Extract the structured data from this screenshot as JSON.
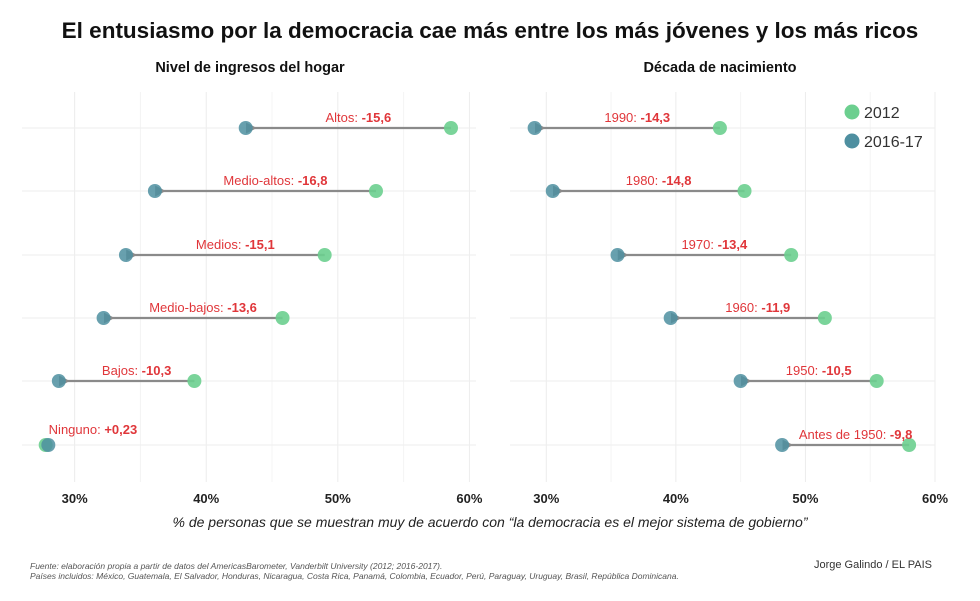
{
  "title": "El entusiasmo por la democracia cae más entre los más jóvenes y los más ricos",
  "caption": "% de personas que se muestran muy de acuerdo con “la democracia es el mejor sistema de gobierno”",
  "source_line1": "Fuente: elaboración propia a partir de datos del AmericasBarometer, Vanderbilt University (2012; 2016-2017).",
  "source_line2": "Países incluidos: México, Guatemala, El Salvador, Honduras, Nicaragua, Costa Rica, Panamá, Colombia, Ecuador, Perú, Paraguay, Uruguay, Brasil, República Dominicana.",
  "credit": "Jorge Galindo / EL PAIS",
  "colors": {
    "2012": "#6ccf8f",
    "2016-17": "#4e8fa0",
    "label": "#e0363a",
    "arrow": "#8a8a8a"
  },
  "chart_data": [
    {
      "type": "dumbbell",
      "title": "Nivel de ingresos del hogar",
      "xlim": [
        26,
        60.5
      ],
      "xticks": [
        30,
        40,
        50,
        60
      ],
      "xtick_labels": [
        "30%",
        "40%",
        "50%",
        "60%"
      ],
      "grid": true,
      "categories": [
        "Altos",
        "Medio-altos",
        "Medios",
        "Medio-bajos",
        "Bajos",
        "Ninguno"
      ],
      "changes": [
        "-15,6",
        "-16,8",
        "-15,1",
        "-13,6",
        "-10,3",
        "+0,23"
      ],
      "series": [
        {
          "name": "2012",
          "values": [
            58.6,
            52.9,
            49.0,
            45.8,
            39.1,
            27.8
          ]
        },
        {
          "name": "2016-17",
          "values": [
            43.0,
            36.1,
            33.9,
            32.2,
            28.8,
            28.0
          ]
        }
      ]
    },
    {
      "type": "dumbbell",
      "title": "Década de nacimiento",
      "xlim": [
        27.2,
        60
      ],
      "xticks": [
        30,
        40,
        50,
        60
      ],
      "xtick_labels": [
        "30%",
        "40%",
        "50%",
        "60%"
      ],
      "grid": true,
      "legend": "top-right",
      "categories": [
        "1990",
        "1980",
        "1970",
        "1960",
        "1950",
        "Antes de 1950"
      ],
      "changes": [
        "-14,3",
        "-14,8",
        "-13,4",
        "-11,9",
        "-10,5",
        "-9,8"
      ],
      "series": [
        {
          "name": "2012",
          "values": [
            43.4,
            45.3,
            48.9,
            51.5,
            55.5,
            58.0
          ]
        },
        {
          "name": "2016-17",
          "values": [
            29.1,
            30.5,
            35.5,
            39.6,
            45.0,
            48.2
          ]
        }
      ]
    }
  ]
}
